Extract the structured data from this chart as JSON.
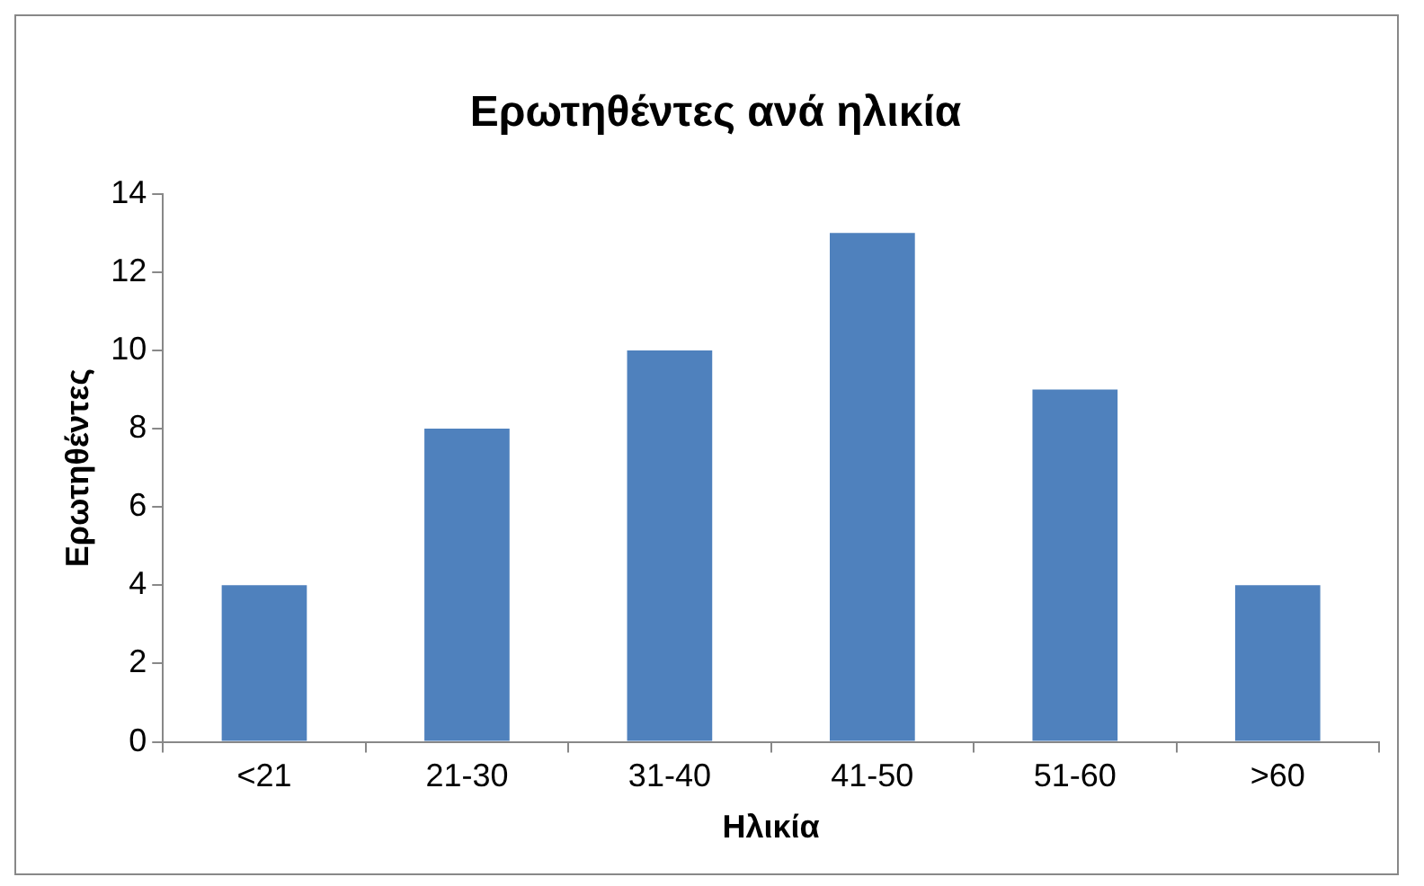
{
  "chart_data": {
    "type": "bar",
    "title": "Ερωτηθέντες ανά ηλικία",
    "xlabel": "Ηλικία",
    "ylabel": "Ερωτηθέντες",
    "categories": [
      "<21",
      "21-30",
      "31-40",
      "41-50",
      "51-60",
      ">60"
    ],
    "values": [
      4,
      8,
      10,
      13,
      9,
      4
    ],
    "color": "#4f81bd",
    "ylim": [
      0,
      14
    ],
    "yticks": [
      0,
      2,
      4,
      6,
      8,
      10,
      12,
      14
    ],
    "grid": false,
    "legend": false
  }
}
